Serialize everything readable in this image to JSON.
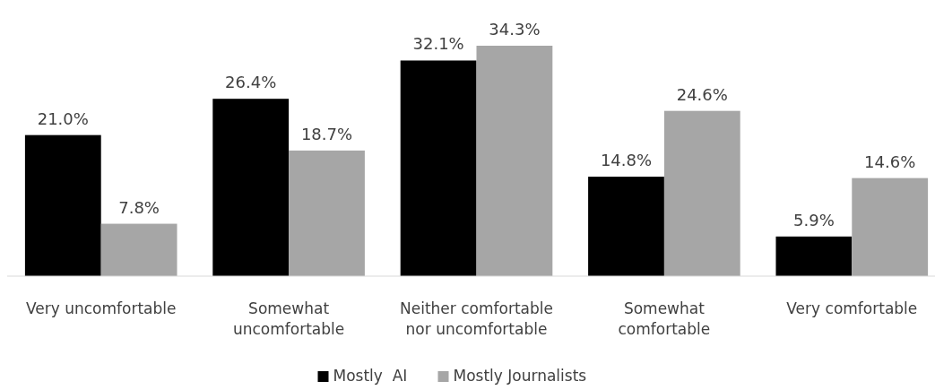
{
  "chart_data": {
    "type": "bar",
    "categories": [
      "Very uncomfortable",
      "Somewhat uncomfortable",
      "Neither comfortable nor uncomfortable",
      "Somewhat comfortable",
      "Very comfortable"
    ],
    "series": [
      {
        "name": "Mostly  AI",
        "color": "#000000",
        "values": [
          21.0,
          26.4,
          32.1,
          14.8,
          5.9
        ],
        "value_labels": [
          "21.0%",
          "26.4%",
          "32.1%",
          "14.8%",
          "5.9%"
        ]
      },
      {
        "name": "Mostly Journalists",
        "color": "#a6a6a6",
        "values": [
          7.8,
          18.7,
          34.3,
          24.6,
          14.6
        ],
        "value_labels": [
          "7.8%",
          "18.7%",
          "34.3%",
          "24.6%",
          "14.6%"
        ]
      }
    ],
    "legend": "bottom"
  }
}
